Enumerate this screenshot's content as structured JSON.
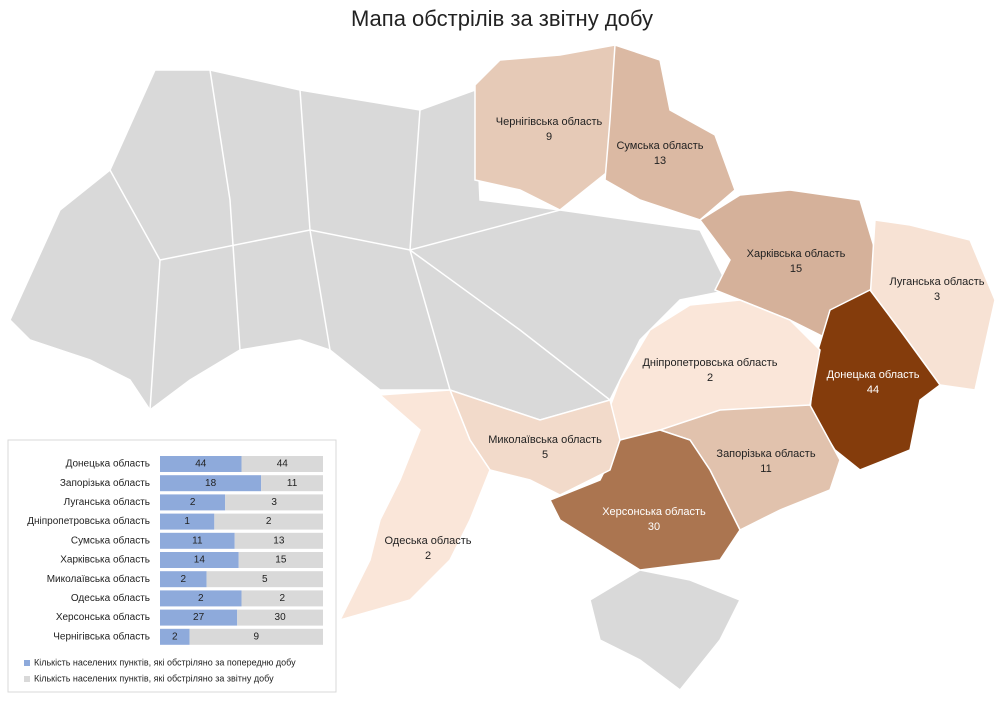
{
  "title": "Мапа обстрілів за звітну добу",
  "map": {
    "color_scale": [
      "#fae6d9",
      "#843c0c"
    ],
    "regions": [
      {
        "name": "Чернігівська область",
        "value": 9
      },
      {
        "name": "Сумська область",
        "value": 13
      },
      {
        "name": "Харківська область",
        "value": 15
      },
      {
        "name": "Луганська область",
        "value": 3
      },
      {
        "name": "Донецька область",
        "value": 44
      },
      {
        "name": "Дніпропетровська область",
        "value": 2
      },
      {
        "name": "Запорізька область",
        "value": 11
      },
      {
        "name": "Херсонська область",
        "value": 30
      },
      {
        "name": "Миколаївська область",
        "value": 5
      },
      {
        "name": "Одеська область",
        "value": 2
      }
    ]
  },
  "chart_data": {
    "type": "bar",
    "stacking": "percent",
    "categories": [
      "Донецька область",
      "Запорізька область",
      "Луганська область",
      "Дніпропетровська область",
      "Сумська область",
      "Харківська область",
      "Миколаївська область",
      "Одеська область",
      "Херсонська область",
      "Чернігівська область"
    ],
    "series": [
      {
        "name": "Кількість населених пунктів, які обстріляно за попередню добу",
        "color": "#8eaadb",
        "values": [
          44,
          18,
          2,
          1,
          11,
          14,
          2,
          2,
          27,
          2
        ]
      },
      {
        "name": "Кількість населених пунктів, які обстріляно за звітну добу",
        "color": "#d9d9d9",
        "values": [
          44,
          11,
          3,
          2,
          13,
          15,
          5,
          2,
          30,
          9
        ]
      }
    ]
  }
}
